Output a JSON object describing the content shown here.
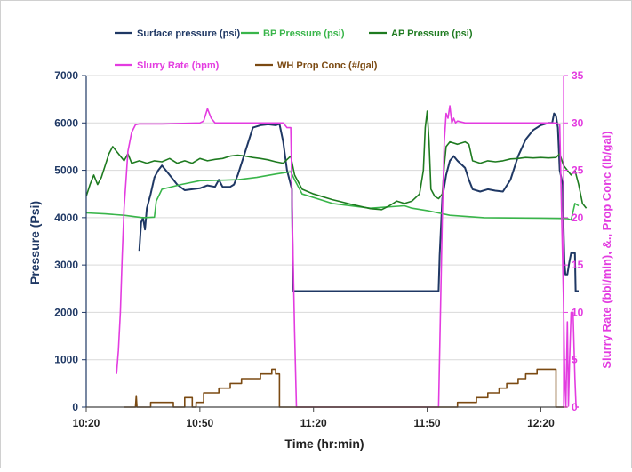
{
  "chart_data": {
    "type": "line",
    "title": "",
    "xlabel": "Time (hr:min)",
    "ylabel_left": "Pressure (Psi)",
    "ylabel_right": "Slurry Rate (bbl/min), &., Prop Conc (lb/gal)",
    "x_ticks": [
      "10:20",
      "10:50",
      "11:20",
      "11:50",
      "12:20"
    ],
    "x_range_min": [
      10,
      136
    ],
    "ylim_left": [
      0,
      7000
    ],
    "ylim_right": [
      0,
      35
    ],
    "y_ticks_left": [
      "0",
      "1000",
      "2000",
      "3000",
      "4000",
      "5000",
      "6000",
      "7000"
    ],
    "y_ticks_right": [
      "0",
      "5",
      "10",
      "15",
      "20",
      "25",
      "30",
      "35"
    ],
    "legend": [
      {
        "name": "Surface pressure (psi)",
        "color": "#1f3864",
        "axis": "left"
      },
      {
        "name": "BP Pressure (psi)",
        "color": "#39b54a",
        "axis": "left"
      },
      {
        "name": "AP Pressure (psi)",
        "color": "#1e7b20",
        "axis": "left"
      },
      {
        "name": "Slurry Rate (bpm)",
        "color": "#e33ce0",
        "axis": "right"
      },
      {
        "name": "WH Prop Conc (#/gal)",
        "color": "#7b4a12",
        "axis": "right"
      }
    ],
    "series": [
      {
        "name": "Surface pressure (psi)",
        "axis": "left",
        "color": "#1f3864",
        "width": 2,
        "points": [
          [
            24,
            3300
          ],
          [
            24.5,
            3900
          ],
          [
            25,
            4000
          ],
          [
            25.5,
            3750
          ],
          [
            26,
            4200
          ],
          [
            27,
            4500
          ],
          [
            28,
            4850
          ],
          [
            29,
            5000
          ],
          [
            30,
            5100
          ],
          [
            32,
            4900
          ],
          [
            34,
            4700
          ],
          [
            36,
            4580
          ],
          [
            38,
            4600
          ],
          [
            40,
            4620
          ],
          [
            42,
            4680
          ],
          [
            44,
            4650
          ],
          [
            45,
            4800
          ],
          [
            46,
            4650
          ],
          [
            48,
            4650
          ],
          [
            49,
            4700
          ],
          [
            50,
            4900
          ],
          [
            52,
            5400
          ],
          [
            54,
            5900
          ],
          [
            56,
            5950
          ],
          [
            58,
            5970
          ],
          [
            60,
            5950
          ],
          [
            61,
            5980
          ],
          [
            62,
            5600
          ],
          [
            63,
            5000
          ],
          [
            64.3,
            4600
          ],
          [
            64.5,
            3100
          ],
          [
            64.7,
            2450
          ],
          [
            66,
            2450
          ],
          [
            100,
            2450
          ],
          [
            103,
            2450
          ],
          [
            103.3,
            3200
          ],
          [
            104,
            4400
          ],
          [
            105,
            4900
          ],
          [
            106,
            5200
          ],
          [
            107,
            5300
          ],
          [
            108,
            5200
          ],
          [
            110,
            5050
          ],
          [
            111,
            4800
          ],
          [
            112,
            4600
          ],
          [
            114,
            4550
          ],
          [
            116,
            4600
          ],
          [
            118,
            4570
          ],
          [
            120,
            4550
          ],
          [
            122,
            4800
          ],
          [
            124,
            5300
          ],
          [
            126,
            5650
          ],
          [
            128,
            5850
          ],
          [
            130,
            5950
          ],
          [
            132,
            6000
          ],
          [
            133,
            6000
          ],
          [
            133.5,
            6200
          ],
          [
            134,
            6150
          ],
          [
            134.5,
            5900
          ],
          [
            135,
            5000
          ],
          [
            135.8,
            4700
          ],
          [
            136,
            3800
          ],
          [
            136.2,
            3100
          ],
          [
            136.5,
            2800
          ],
          [
            137,
            2800
          ],
          [
            137.5,
            3050
          ],
          [
            138,
            3250
          ],
          [
            139,
            3250
          ],
          [
            139.2,
            2450
          ],
          [
            140,
            2450
          ]
        ]
      },
      {
        "name": "BP Pressure (psi)",
        "axis": "left",
        "color": "#39b54a",
        "width": 1.6,
        "points": [
          [
            10,
            4100
          ],
          [
            15,
            4080
          ],
          [
            20,
            4050
          ],
          [
            25,
            4000
          ],
          [
            28,
            4010
          ],
          [
            28.5,
            4350
          ],
          [
            30,
            4600
          ],
          [
            35,
            4700
          ],
          [
            40,
            4780
          ],
          [
            50,
            4800
          ],
          [
            55,
            4850
          ],
          [
            60,
            4920
          ],
          [
            64,
            4970
          ],
          [
            65,
            4800
          ],
          [
            67,
            4500
          ],
          [
            75,
            4300
          ],
          [
            85,
            4200
          ],
          [
            94,
            4250
          ],
          [
            96,
            4200
          ],
          [
            100,
            4150
          ],
          [
            106,
            4050
          ],
          [
            115,
            4000
          ],
          [
            130,
            3990
          ],
          [
            137,
            3980
          ],
          [
            138,
            3950
          ],
          [
            139,
            4300
          ],
          [
            140,
            4250
          ]
        ]
      },
      {
        "name": "AP Pressure (psi)",
        "axis": "left",
        "color": "#1e7b20",
        "width": 1.6,
        "points": [
          [
            10,
            4450
          ],
          [
            11,
            4700
          ],
          [
            12,
            4900
          ],
          [
            13,
            4700
          ],
          [
            14,
            4850
          ],
          [
            15,
            5100
          ],
          [
            16,
            5350
          ],
          [
            17,
            5500
          ],
          [
            18,
            5400
          ],
          [
            19,
            5300
          ],
          [
            20,
            5200
          ],
          [
            21,
            5350
          ],
          [
            22,
            5150
          ],
          [
            24,
            5200
          ],
          [
            26,
            5150
          ],
          [
            28,
            5200
          ],
          [
            30,
            5180
          ],
          [
            32,
            5250
          ],
          [
            34,
            5150
          ],
          [
            36,
            5200
          ],
          [
            38,
            5150
          ],
          [
            40,
            5250
          ],
          [
            42,
            5200
          ],
          [
            44,
            5230
          ],
          [
            46,
            5250
          ],
          [
            48,
            5300
          ],
          [
            50,
            5320
          ],
          [
            52,
            5300
          ],
          [
            54,
            5270
          ],
          [
            56,
            5250
          ],
          [
            58,
            5220
          ],
          [
            60,
            5180
          ],
          [
            62,
            5150
          ],
          [
            64,
            5300
          ],
          [
            65,
            4900
          ],
          [
            67,
            4600
          ],
          [
            70,
            4500
          ],
          [
            75,
            4380
          ],
          [
            80,
            4280
          ],
          [
            85,
            4190
          ],
          [
            88,
            4170
          ],
          [
            90,
            4250
          ],
          [
            92,
            4350
          ],
          [
            94,
            4300
          ],
          [
            96,
            4350
          ],
          [
            98,
            4500
          ],
          [
            99,
            5000
          ],
          [
            99.5,
            5900
          ],
          [
            100,
            6250
          ],
          [
            100.5,
            5600
          ],
          [
            101,
            4600
          ],
          [
            102,
            4450
          ],
          [
            103,
            4400
          ],
          [
            104,
            4500
          ],
          [
            104.5,
            5100
          ],
          [
            105,
            5500
          ],
          [
            106,
            5600
          ],
          [
            108,
            5550
          ],
          [
            110,
            5600
          ],
          [
            111,
            5550
          ],
          [
            112,
            5200
          ],
          [
            114,
            5150
          ],
          [
            116,
            5200
          ],
          [
            118,
            5180
          ],
          [
            120,
            5200
          ],
          [
            122,
            5240
          ],
          [
            124,
            5250
          ],
          [
            126,
            5270
          ],
          [
            128,
            5260
          ],
          [
            130,
            5270
          ],
          [
            132,
            5260
          ],
          [
            134,
            5270
          ],
          [
            135,
            5350
          ],
          [
            136,
            5100
          ],
          [
            137,
            5000
          ],
          [
            138,
            4900
          ],
          [
            139,
            5000
          ],
          [
            140,
            4700
          ],
          [
            141,
            4300
          ],
          [
            142,
            4200
          ]
        ]
      },
      {
        "name": "Slurry Rate (bpm)",
        "axis": "right",
        "color": "#e33ce0",
        "width": 1.6,
        "points": [
          [
            18,
            3.5
          ],
          [
            18.5,
            6
          ],
          [
            19,
            10
          ],
          [
            19.5,
            16
          ],
          [
            20,
            21
          ],
          [
            20.5,
            24
          ],
          [
            21,
            27
          ],
          [
            22,
            29
          ],
          [
            23,
            29.8
          ],
          [
            24,
            29.9
          ],
          [
            30,
            29.9
          ],
          [
            40,
            30
          ],
          [
            41,
            30.2
          ],
          [
            42,
            31.5
          ],
          [
            43,
            30.5
          ],
          [
            44,
            30
          ],
          [
            50,
            30
          ],
          [
            55,
            30
          ],
          [
            60,
            30
          ],
          [
            62,
            30
          ],
          [
            63,
            29.5
          ],
          [
            64,
            29.5
          ],
          [
            64.5,
            18
          ],
          [
            65,
            8
          ],
          [
            65.5,
            0
          ],
          [
            103,
            0
          ],
          [
            103.5,
            10
          ],
          [
            104,
            20
          ],
          [
            104.5,
            28
          ],
          [
            105,
            31
          ],
          [
            105.5,
            30.5
          ],
          [
            106,
            31.8
          ],
          [
            106.5,
            30
          ],
          [
            107,
            30.5
          ],
          [
            107.5,
            30
          ],
          [
            108,
            30.2
          ],
          [
            110,
            30
          ],
          [
            120,
            30
          ],
          [
            130,
            30
          ],
          [
            134,
            30
          ],
          [
            135,
            29.8
          ],
          [
            135.5,
            20
          ],
          [
            136,
            11
          ],
          [
            136.3,
            3
          ],
          [
            136.6,
            0.1
          ],
          [
            137,
            9
          ],
          [
            137.3,
            0.1
          ],
          [
            137.6,
            5
          ],
          [
            138,
            10
          ],
          [
            138.5,
            10
          ],
          [
            139,
            3
          ],
          [
            139.3,
            0
          ],
          [
            140,
            0
          ]
        ]
      },
      {
        "name": "WH Prop Conc (#/gal)",
        "axis": "right",
        "color": "#7b4a12",
        "width": 1.6,
        "points": [
          [
            20,
            0
          ],
          [
            23,
            0
          ],
          [
            23.2,
            1.2
          ],
          [
            23.4,
            0
          ],
          [
            27,
            0
          ],
          [
            27,
            0.5
          ],
          [
            33,
            0.5
          ],
          [
            33,
            0
          ],
          [
            36,
            0
          ],
          [
            36,
            1
          ],
          [
            38,
            1
          ],
          [
            38,
            0
          ],
          [
            39,
            0
          ],
          [
            39,
            0.5
          ],
          [
            41,
            0.5
          ],
          [
            41,
            1.5
          ],
          [
            45,
            1.5
          ],
          [
            45,
            2
          ],
          [
            48,
            2
          ],
          [
            48,
            2.5
          ],
          [
            51,
            2.5
          ],
          [
            51,
            3
          ],
          [
            56,
            3
          ],
          [
            56,
            3.5
          ],
          [
            59,
            3.5
          ],
          [
            59,
            4
          ],
          [
            60,
            4
          ],
          [
            60,
            3.5
          ],
          [
            61,
            3.5
          ],
          [
            61,
            0
          ],
          [
            64,
            0
          ],
          [
            104,
            0
          ],
          [
            108,
            0
          ],
          [
            108,
            0.5
          ],
          [
            113,
            0.5
          ],
          [
            113,
            1
          ],
          [
            116,
            1
          ],
          [
            116,
            1.5
          ],
          [
            119,
            1.5
          ],
          [
            119,
            2
          ],
          [
            121,
            2
          ],
          [
            121,
            2.5
          ],
          [
            124,
            2.5
          ],
          [
            124,
            3
          ],
          [
            126,
            3
          ],
          [
            126,
            3.5
          ],
          [
            129,
            3.5
          ],
          [
            129,
            4
          ],
          [
            131,
            4
          ],
          [
            131,
            4
          ],
          [
            134,
            4
          ],
          [
            134,
            0
          ],
          [
            137,
            0
          ]
        ]
      }
    ]
  }
}
